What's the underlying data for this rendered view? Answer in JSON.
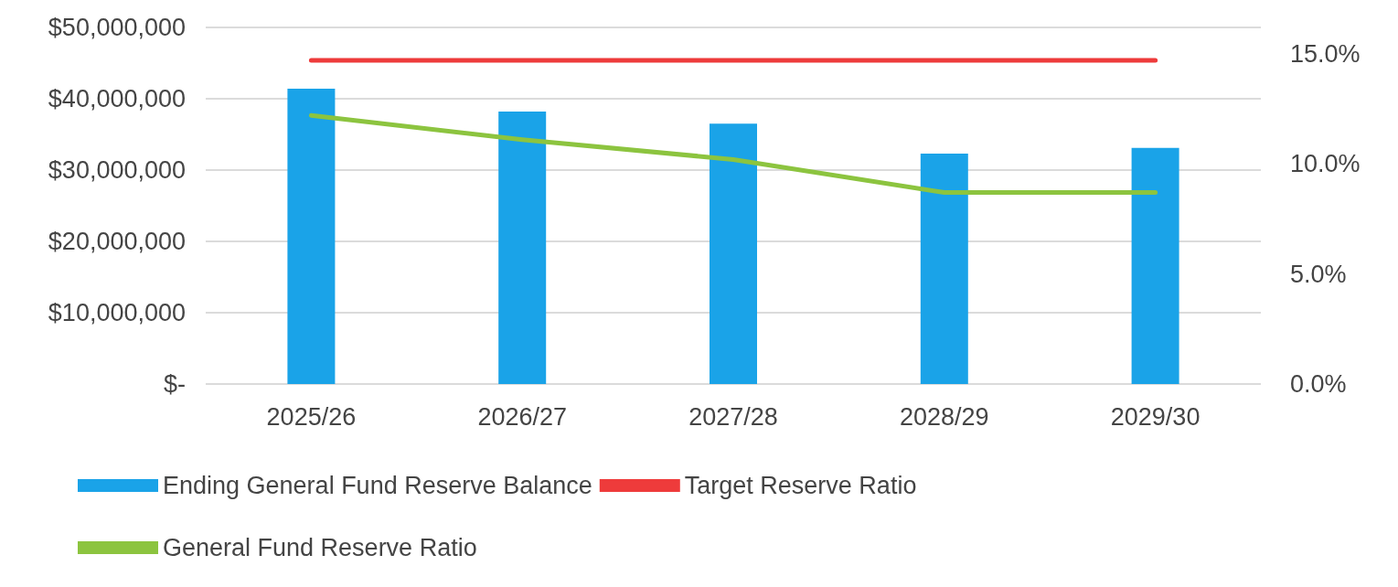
{
  "chart_data": {
    "type": "bar",
    "categories": [
      "2025/26",
      "2026/27",
      "2027/28",
      "2028/29",
      "2029/30"
    ],
    "series": [
      {
        "name": "Ending General Fund Reserve Balance",
        "color": "#1aa3e8",
        "values": [
          41400000,
          38200000,
          36500000,
          32300000,
          33100000
        ]
      },
      {
        "name": "Target Reserve Ratio",
        "type": "line",
        "axis": "y2",
        "color": "#ee3b3b",
        "values": [
          14.7,
          14.7,
          14.7,
          14.7,
          14.7
        ]
      },
      {
        "name": "General Fund Reserve Ratio",
        "type": "line",
        "axis": "y2",
        "color": "#8cc43f",
        "values": [
          12.2,
          11.1,
          10.2,
          8.7,
          8.7
        ]
      }
    ],
    "ylim": [
      0,
      50000000
    ],
    "yticks": [
      {
        "value": 0,
        "label": "$-"
      },
      {
        "value": 10000000,
        "label": "$10,000,000"
      },
      {
        "value": 20000000,
        "label": "$20,000,000"
      },
      {
        "value": 30000000,
        "label": "$30,000,000"
      },
      {
        "value": 40000000,
        "label": "$40,000,000"
      },
      {
        "value": 50000000,
        "label": "$50,000,000"
      }
    ],
    "y2lim": [
      0,
      16.2
    ],
    "y2ticks": [
      {
        "value": 0,
        "label": "0.0%"
      },
      {
        "value": 5,
        "label": "5.0%"
      },
      {
        "value": 10,
        "label": "10.0%"
      },
      {
        "value": 15,
        "label": "15.0%"
      }
    ],
    "grid": "y",
    "legend": "bottom",
    "marker": "none",
    "line_style": "solid"
  }
}
